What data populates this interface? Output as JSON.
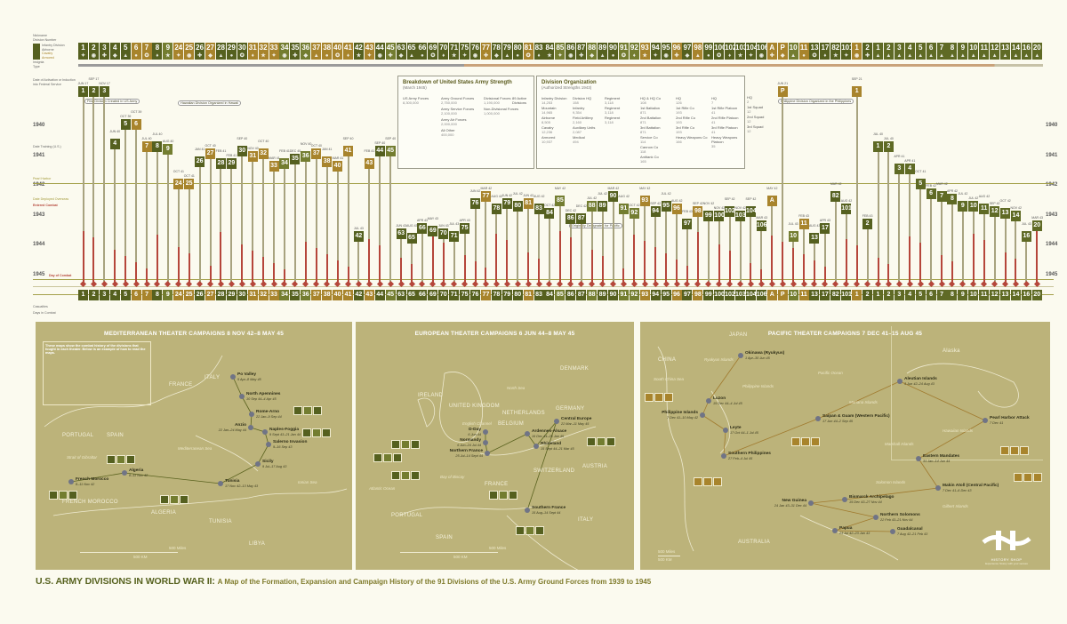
{
  "colors": {
    "background": "#fbfaef",
    "d": "#55601f",
    "l": "#737d30",
    "g": "#a8842c",
    "a": "#5f6a25",
    "map_panel": "#bcb37a",
    "combat_line": "#b5463a",
    "service_line": "#a8a37f",
    "pearl_harbor_line": "#a3a04a"
  },
  "header": {
    "row_labels": [
      "Nickname",
      "Division Number",
      "Insignia",
      "Type"
    ],
    "legend": [
      "Infantry Division",
      "Airborne",
      "Cavalry",
      "Armored"
    ]
  },
  "timeline": {
    "years": [
      "1940",
      "1941",
      "1942",
      "1943",
      "1944",
      "1945"
    ],
    "side_labels": [
      "Date of Activation or Induction into Federal Service",
      "Date Training (U.S.)",
      "Pearl Harbor",
      "Date Deployed Overseas",
      "Entered Combat",
      "Day of Combat"
    ],
    "callouts": [
      "First Division Created in US Army",
      "Hawaiian Division Organized in Hawaii",
      "Philippine Division Organized in the Philippines",
      "Originally Designated for Pacific"
    ],
    "bottom_labels": [
      "Casualties",
      "Days in Combat"
    ]
  },
  "divisions": [
    {
      "n": "1",
      "act": "JUN 17",
      "c": "d"
    },
    {
      "n": "2",
      "act": "SEP 17",
      "c": "d"
    },
    {
      "n": "3",
      "act": "NOV 17",
      "c": "d"
    },
    {
      "n": "4",
      "act": "JUN 40",
      "c": "d"
    },
    {
      "n": "5",
      "act": "OCT 39",
      "c": "d"
    },
    {
      "n": "6",
      "act": "OCT 39",
      "c": "g"
    },
    {
      "n": "7",
      "act": "JUL 40",
      "c": "g"
    },
    {
      "n": "8",
      "act": "JUL 40",
      "c": "d"
    },
    {
      "n": "9",
      "act": "AUG 40",
      "c": "l"
    },
    {
      "n": "24",
      "act": "OCT 41",
      "c": "g"
    },
    {
      "n": "25",
      "act": "OCT 41",
      "c": "g"
    },
    {
      "n": "26",
      "act": "JAN 41",
      "c": "d"
    },
    {
      "n": "27",
      "act": "OCT 40",
      "c": "g"
    },
    {
      "n": "28",
      "act": "FEB 41",
      "c": "d"
    },
    {
      "n": "29",
      "act": "FEB 41",
      "c": "d"
    },
    {
      "n": "30",
      "act": "SEP 40",
      "c": "d"
    },
    {
      "n": "31",
      "act": "NOV 40",
      "c": "g"
    },
    {
      "n": "32",
      "act": "OCT 40",
      "c": "g"
    },
    {
      "n": "33",
      "act": "MAR 41",
      "c": "g"
    },
    {
      "n": "34",
      "act": "FEB 41",
      "c": "l"
    },
    {
      "n": "35",
      "act": "DEC 40",
      "c": "d"
    },
    {
      "n": "36",
      "act": "NOV 40",
      "c": "l"
    },
    {
      "n": "37",
      "act": "OCT 40",
      "c": "g"
    },
    {
      "n": "38",
      "act": "JAN 41",
      "c": "g"
    },
    {
      "n": "40",
      "act": "MAR 41",
      "c": "g"
    },
    {
      "n": "41",
      "act": "SEP 40",
      "c": "g"
    },
    {
      "n": "42",
      "act": "JUL 43",
      "c": "d"
    },
    {
      "n": "43",
      "act": "FEB 41",
      "c": "g"
    },
    {
      "n": "44",
      "act": "SEP 40",
      "c": "d"
    },
    {
      "n": "45",
      "act": "SEP 40",
      "c": "l"
    },
    {
      "n": "63",
      "act": "JUN 43",
      "c": "d"
    },
    {
      "n": "65",
      "act": "AUG 43",
      "c": "d"
    },
    {
      "n": "66",
      "act": "APR 43",
      "c": "d"
    },
    {
      "n": "69",
      "act": "MAY 43",
      "c": "d"
    },
    {
      "n": "70",
      "act": "JUN 43",
      "c": "d"
    },
    {
      "n": "71",
      "act": "JUL 43",
      "c": "d"
    },
    {
      "n": "75",
      "act": "APR 43",
      "c": "d"
    },
    {
      "n": "76",
      "act": "JUN 42",
      "c": "d"
    },
    {
      "n": "77",
      "act": "MAR 42",
      "c": "g"
    },
    {
      "n": "78",
      "act": "AUG 42",
      "c": "d"
    },
    {
      "n": "79",
      "act": "JUN 42",
      "c": "d"
    },
    {
      "n": "80",
      "act": "JUL 42",
      "c": "d"
    },
    {
      "n": "81",
      "act": "JUN 42",
      "c": "g"
    },
    {
      "n": "83",
      "act": "AUG 42",
      "c": "d"
    },
    {
      "n": "84",
      "act": "OCT 42",
      "c": "d"
    },
    {
      "n": "85",
      "act": "MAY 42",
      "c": "l"
    },
    {
      "n": "86",
      "act": "DEC 42",
      "c": "d"
    },
    {
      "n": "87",
      "act": "DEC 42",
      "c": "d"
    },
    {
      "n": "88",
      "act": "JUL 42",
      "c": "l"
    },
    {
      "n": "89",
      "act": "JUL 42",
      "c": "d"
    },
    {
      "n": "90",
      "act": "MAR 42",
      "c": "d"
    },
    {
      "n": "91",
      "act": "AUG 42",
      "c": "l"
    },
    {
      "n": "92",
      "act": "OCT 42",
      "c": "l"
    },
    {
      "n": "93",
      "act": "MAY 42",
      "c": "g"
    },
    {
      "n": "94",
      "act": "SEP 42",
      "c": "d"
    },
    {
      "n": "95",
      "act": "JUL 42",
      "c": "d"
    },
    {
      "n": "96",
      "act": "AUG 42",
      "c": "g"
    },
    {
      "n": "97",
      "act": "FEB 43",
      "c": "d"
    },
    {
      "n": "98",
      "act": "SEP 42",
      "c": "g"
    },
    {
      "n": "99",
      "act": "NOV 42",
      "c": "d"
    },
    {
      "n": "100",
      "act": "NOV 42",
      "c": "d"
    },
    {
      "n": "102",
      "act": "SEP 42",
      "c": "d"
    },
    {
      "n": "103",
      "act": "NOV 42",
      "c": "d"
    },
    {
      "n": "104",
      "act": "SEP 42",
      "c": "d"
    },
    {
      "n": "106",
      "act": "MAR 43",
      "c": "d"
    },
    {
      "n": "A",
      "act": "MAY 42",
      "c": "g"
    },
    {
      "n": "P",
      "act": "JUN 21",
      "c": "g"
    },
    {
      "n": "10",
      "act": "JUL 43",
      "c": "l"
    },
    {
      "n": "11",
      "act": "FEB 43",
      "c": "g"
    },
    {
      "n": "13",
      "act": "AUG 43",
      "c": "d"
    },
    {
      "n": "17",
      "act": "APR 43",
      "c": "d"
    },
    {
      "n": "82",
      "act": "MAR 42",
      "c": "d"
    },
    {
      "n": "101",
      "act": "AUG 42",
      "c": "d"
    },
    {
      "n": "1",
      "act": "SEP 21",
      "c": "g"
    },
    {
      "n": "2",
      "act": "FEB 43",
      "c": "d"
    },
    {
      "n": "1",
      "act": "JUL 40",
      "c": "a"
    },
    {
      "n": "2",
      "act": "JUL 40",
      "c": "a"
    },
    {
      "n": "3",
      "act": "APR 41",
      "c": "a"
    },
    {
      "n": "4",
      "act": "APR 41",
      "c": "a"
    },
    {
      "n": "5",
      "act": "OCT 41",
      "c": "a"
    },
    {
      "n": "6",
      "act": "FEB 42",
      "c": "a"
    },
    {
      "n": "7",
      "act": "MAR 42",
      "c": "a"
    },
    {
      "n": "8",
      "act": "APR 42",
      "c": "a"
    },
    {
      "n": "9",
      "act": "JUL 42",
      "c": "a"
    },
    {
      "n": "10",
      "act": "JUL 42",
      "c": "a"
    },
    {
      "n": "11",
      "act": "AUG 42",
      "c": "a"
    },
    {
      "n": "12",
      "act": "SEP 42",
      "c": "a"
    },
    {
      "n": "13",
      "act": "OCT 42",
      "c": "a"
    },
    {
      "n": "14",
      "act": "NOV 42",
      "c": "a"
    },
    {
      "n": "16",
      "act": "JUL 43",
      "c": "a"
    },
    {
      "n": "20",
      "act": "MAR 43",
      "c": "a"
    }
  ],
  "strength": {
    "title": "Breakdown of United States Army Strength",
    "subtitle": "(March 1945)",
    "items": [
      {
        "name": "US Army Forces",
        "value": "8,300,000"
      },
      {
        "name": "Army Ground Forces",
        "value": "2,750,000"
      },
      {
        "name": "Army Service Forces",
        "value": "2,100,000"
      },
      {
        "name": "Army Air Forces",
        "value": "2,000,000"
      },
      {
        "name": "All Other",
        "value": "400,000"
      },
      {
        "name": "Divisional Forces",
        "value": "1,190,000"
      },
      {
        "name": "Non-Divisional Forces",
        "value": "1,000,000"
      },
      {
        "name": "89 Active Divisions",
        "value": ""
      }
    ]
  },
  "organization": {
    "title": "Division Organization",
    "subtitle": "(Authorized Strengths 1943)",
    "columns": [
      [
        {
          "name": "Infantry Division",
          "value": "14,253"
        },
        {
          "name": "Mountain",
          "value": "14,965"
        },
        {
          "name": "Airborne",
          "value": "8,505"
        },
        {
          "name": "Cavalry",
          "value": "12,236"
        },
        {
          "name": "Armored",
          "value": "10,937"
        }
      ],
      [
        {
          "name": "Division HQ",
          "value": "158"
        },
        {
          "name": "Infantry",
          "value": "9,354"
        },
        {
          "name": "Field Artillery",
          "value": "2,160"
        },
        {
          "name": "Auxiliary Units",
          "value": "2,087"
        },
        {
          "name": "Medical",
          "value": "494"
        }
      ],
      [
        {
          "name": "Regiment",
          "value": "3,118"
        },
        {
          "name": "Regiment",
          "value": "3,118"
        },
        {
          "name": "Regiment",
          "value": "3,118"
        }
      ],
      [
        {
          "name": "HQ & HQ Co",
          "value": "108"
        },
        {
          "name": "1st Battalion",
          "value": "871"
        },
        {
          "name": "2nd Battalion",
          "value": "871"
        },
        {
          "name": "3rd Battalion",
          "value": "871"
        },
        {
          "name": "Service Co",
          "value": "114"
        },
        {
          "name": "Cannon Co",
          "value": "118"
        },
        {
          "name": "Antitank Co",
          "value": "165"
        }
      ],
      [
        {
          "name": "HQ",
          "value": "126"
        },
        {
          "name": "1st Rifle Co",
          "value": "193"
        },
        {
          "name": "2nd Rifle Co",
          "value": "193"
        },
        {
          "name": "3rd Rifle Co",
          "value": "193"
        },
        {
          "name": "Heavy Weapons Co",
          "value": "166"
        }
      ],
      [
        {
          "name": "HQ",
          "value": "7"
        },
        {
          "name": "1st Rifle Platoon",
          "value": "41"
        },
        {
          "name": "2nd Rifle Platoon",
          "value": "41"
        },
        {
          "name": "3rd Rifle Platoon",
          "value": "41"
        },
        {
          "name": "Heavy Weapons Platoon",
          "value": "35"
        }
      ],
      [
        {
          "name": "HQ",
          "value": "2"
        },
        {
          "name": "1st Squad",
          "value": "12"
        },
        {
          "name": "2nd Squad",
          "value": "12"
        },
        {
          "name": "3rd Squad",
          "value": "12"
        }
      ]
    ]
  },
  "maps": [
    {
      "title": "MEDITERRANEAN THEATER CAMPAIGNS 8 NOV 42–8 MAY 45",
      "countries": [
        "FRANCE",
        "ITALY",
        "PORTUGAL",
        "SPAIN",
        "FRENCH MOROCCO",
        "ALGERIA",
        "TUNISIA",
        "LIBYA"
      ],
      "seas": [
        "Mediterranean Sea",
        "Strait of Gibraltar",
        "Ionian Sea"
      ],
      "campaigns": [
        {
          "name": "French Morocco",
          "dates": "8–11 Nov 42"
        },
        {
          "name": "Algeria",
          "dates": "8–11 Nov 42"
        },
        {
          "name": "Tunisia",
          "dates": "17 Nov 42–13 May 43"
        },
        {
          "name": "Sicily",
          "dates": "9 Jul–17 Aug 43"
        },
        {
          "name": "Salerno Invasion",
          "dates": "9–16 Sep 43"
        },
        {
          "name": "Naples-Foggia",
          "dates": "9 Sept 43–21 Jan 44"
        },
        {
          "name": "Anzio",
          "dates": "22 Jan–24 May 44"
        },
        {
          "name": "Rome-Arno",
          "dates": "22 Jan–9 Sep 44"
        },
        {
          "name": "North Apennines",
          "dates": "10 Sep 44–4 Apr 45"
        },
        {
          "name": "Po Valley",
          "dates": "5 Apr–8 May 45"
        }
      ],
      "scale": [
        "500 Miles",
        "500 KM"
      ],
      "legend_note": "These maps show the combat history of the divisions that fought in each theater. Below is an example of how to read the maps."
    },
    {
      "title": "EUROPEAN THEATER CAMPAIGNS 6 JUN 44–8 MAY 45",
      "countries": [
        "IRELAND",
        "UNITED KINGDOM",
        "NETHERLANDS",
        "BELGIUM",
        "GERMANY",
        "DENMARK",
        "FRANCE",
        "SWITZERLAND",
        "AUSTRIA",
        "ITALY",
        "PORTUGAL",
        "SPAIN"
      ],
      "seas": [
        "North Sea",
        "English Channel",
        "Bay of Biscay",
        "Atlantic Ocean"
      ],
      "campaigns": [
        {
          "name": "D-Day",
          "dates": "6 Jun 44"
        },
        {
          "name": "Normandy",
          "dates": "6 Jun–24 Jul 44"
        },
        {
          "name": "Northern France",
          "dates": "25 Jul–14 Sept 44"
        },
        {
          "name": "Ardennes-Alsace",
          "dates": "16 Dec 44–25 Jan 45"
        },
        {
          "name": "Rhineland",
          "dates": "15 Sept 44–21 Mar 45"
        },
        {
          "name": "Central Europe",
          "dates": "22 Mar–11 May 45"
        },
        {
          "name": "Southern France",
          "dates": "15 Aug–14 Sept 44"
        }
      ],
      "scale": [
        "500 Miles",
        "500 KM"
      ]
    },
    {
      "title": "PACIFIC THEATER CAMPAIGNS 7 DEC 41–15 AUG 45",
      "countries": [
        "JAPAN",
        "CHINA",
        "AUSTRALIA",
        "Alaska"
      ],
      "seas": [
        "Ryukyus Islands",
        "Philippine Islands",
        "Mariana Islands",
        "Marshall Islands",
        "Solomon Islands",
        "Gilbert Islands",
        "Hawaiian Islands",
        "Pacific Ocean",
        "South China Sea"
      ],
      "campaigns": [
        {
          "name": "Okinawa (Ryukyus)",
          "dates": "1 Apr–30 Jun 45"
        },
        {
          "name": "Luzon",
          "dates": "15 Dec 44–4 Jul 45"
        },
        {
          "name": "Philippine Islands",
          "dates": "7 Dec 41–10 May 42"
        },
        {
          "name": "Leyte",
          "dates": "17 Oct 44–1 Jul 45"
        },
        {
          "name": "Southern Philippines",
          "dates": "27 Feb–4 Jul 45"
        },
        {
          "name": "Saipan & Guam (Western Pacific)",
          "dates": "17 Jun 44–2 Sep 45"
        },
        {
          "name": "Aleutian Islands",
          "dates": "3 Jun 42–24 Aug 43"
        },
        {
          "name": "Pearl Harbor Attack",
          "dates": "7 Dec 41"
        },
        {
          "name": "Eastern Mandates",
          "dates": "31 Jan–14 Jun 44"
        },
        {
          "name": "Makin Atoll (Central Pacific)",
          "dates": "7 Dec 41–6 Dec 43"
        },
        {
          "name": "Bismarck Archipelago",
          "dates": "15 Dec 43–27 Nov 44"
        },
        {
          "name": "New Guinea",
          "dates": "24 Jan 43–31 Dec 44"
        },
        {
          "name": "Northern Solomons",
          "dates": "22 Feb 43–21 Nov 44"
        },
        {
          "name": "Papua",
          "dates": "23 Jul 42–23 Jan 43"
        },
        {
          "name": "Guadalcanal",
          "dates": "7 Aug 42–21 Feb 43"
        }
      ],
      "scale": [
        "500 Miles",
        "500 KM"
      ]
    }
  ],
  "logo": {
    "text": "HISTORY SHOP",
    "tagline": "Experience history with your senses"
  },
  "footer": {
    "title": "U.S. ARMY DIVISIONS IN WORLD WAR II:",
    "subtitle": "A Map of the Formation, Expansion and Campaign History of the 91 Divisions of the U.S. Army Ground Forces from 1939 to 1945"
  }
}
